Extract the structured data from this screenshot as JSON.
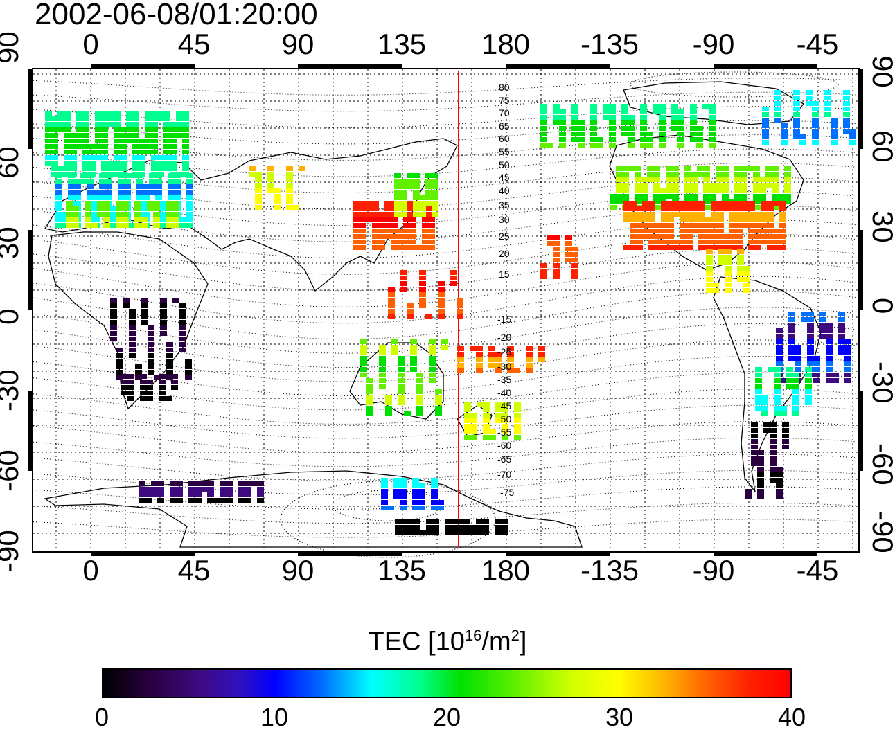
{
  "title": {
    "timestamp": "2002-06-08/01:20:00"
  },
  "map": {
    "lon_labels": [
      "0",
      "45",
      "90",
      "135",
      "180",
      "-135",
      "-90",
      "-45"
    ],
    "lat_labels_left": [
      "90",
      "60",
      "30",
      "0",
      "-30",
      "-60",
      "-90"
    ],
    "lat_labels_right": [
      "90",
      "60",
      "30",
      "0",
      "-30",
      "-60",
      "-90"
    ],
    "contour_labels_north": [
      "80",
      "75",
      "70",
      "65",
      "60",
      "55",
      "50",
      "45",
      "40",
      "35",
      "30",
      "25",
      "20",
      "15"
    ],
    "contour_labels_south": [
      "-15",
      "-20",
      "-25",
      "-30",
      "-35",
      "-40",
      "-45",
      "-50",
      "-55",
      "-60",
      "-65",
      "-70",
      "-75"
    ],
    "terminator_color": "#ff0000"
  },
  "colorbar": {
    "title": "TEC  [10",
    "title_sup1": "16",
    "title_mid": "/m",
    "title_sup2": "2",
    "title_end": "]",
    "ticks": [
      "0",
      "10",
      "20",
      "30",
      "40"
    ],
    "min": 0,
    "max": 40
  }
}
